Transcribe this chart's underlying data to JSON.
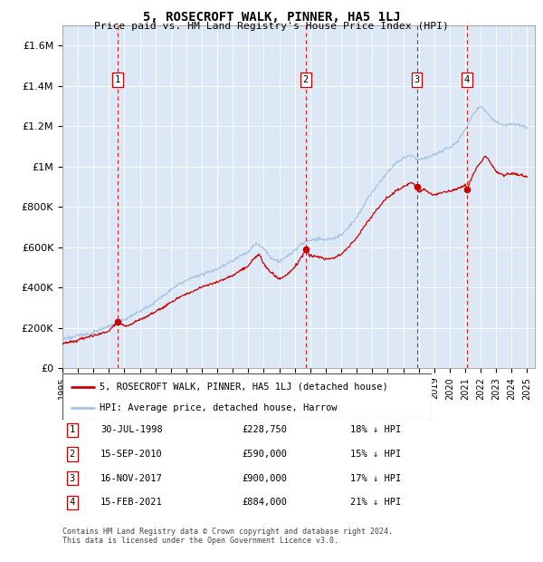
{
  "title": "5, ROSECROFT WALK, PINNER, HA5 1LJ",
  "subtitle": "Price paid vs. HM Land Registry's House Price Index (HPI)",
  "ylabel_ticks": [
    "£0",
    "£200K",
    "£400K",
    "£600K",
    "£800K",
    "£1M",
    "£1.2M",
    "£1.4M",
    "£1.6M"
  ],
  "ytick_values": [
    0,
    200000,
    400000,
    600000,
    800000,
    1000000,
    1200000,
    1400000,
    1600000
  ],
  "ylim": [
    0,
    1700000
  ],
  "hpi_color": "#a8c4e0",
  "price_color": "#cc0000",
  "vline_color": "#cc0000",
  "background_color": "#dce8f5",
  "transactions": [
    {
      "date_num": 1998.57,
      "price": 228750,
      "label": "1",
      "date_str": "30-JUL-1998",
      "pct": "18%"
    },
    {
      "date_num": 2010.71,
      "price": 590000,
      "label": "2",
      "date_str": "15-SEP-2010",
      "pct": "15%"
    },
    {
      "date_num": 2017.88,
      "price": 900000,
      "label": "3",
      "date_str": "16-NOV-2017",
      "pct": "17%"
    },
    {
      "date_num": 2021.12,
      "price": 884000,
      "label": "4",
      "date_str": "15-FEB-2021",
      "pct": "21%"
    }
  ],
  "legend_line1": "5, ROSECROFT WALK, PINNER, HA5 1LJ (detached house)",
  "legend_line2": "HPI: Average price, detached house, Harrow",
  "footer": "Contains HM Land Registry data © Crown copyright and database right 2024.\nThis data is licensed under the Open Government Licence v3.0.",
  "table_rows": [
    [
      "1",
      "30-JUL-1998",
      "£228,750",
      "18% ↓ HPI"
    ],
    [
      "2",
      "15-SEP-2010",
      "£590,000",
      "15% ↓ HPI"
    ],
    [
      "3",
      "16-NOV-2017",
      "£900,000",
      "17% ↓ HPI"
    ],
    [
      "4",
      "15-FEB-2021",
      "£884,000",
      "21% ↓ HPI"
    ]
  ],
  "hpi_keypoints": [
    [
      1995.0,
      140000
    ],
    [
      1996.0,
      155000
    ],
    [
      1997.0,
      175000
    ],
    [
      1998.0,
      200000
    ],
    [
      1999.0,
      235000
    ],
    [
      2000.0,
      275000
    ],
    [
      2001.0,
      320000
    ],
    [
      2002.0,
      380000
    ],
    [
      2003.0,
      430000
    ],
    [
      2004.0,
      460000
    ],
    [
      2005.0,
      490000
    ],
    [
      2006.0,
      530000
    ],
    [
      2007.0,
      580000
    ],
    [
      2007.5,
      620000
    ],
    [
      2008.0,
      590000
    ],
    [
      2008.5,
      545000
    ],
    [
      2009.0,
      530000
    ],
    [
      2009.5,
      555000
    ],
    [
      2010.0,
      590000
    ],
    [
      2010.5,
      625000
    ],
    [
      2011.0,
      640000
    ],
    [
      2011.5,
      650000
    ],
    [
      2012.0,
      645000
    ],
    [
      2012.5,
      655000
    ],
    [
      2013.0,
      670000
    ],
    [
      2013.5,
      710000
    ],
    [
      2014.0,
      760000
    ],
    [
      2014.5,
      820000
    ],
    [
      2015.0,
      880000
    ],
    [
      2015.5,
      930000
    ],
    [
      2016.0,
      980000
    ],
    [
      2016.5,
      1020000
    ],
    [
      2017.0,
      1050000
    ],
    [
      2017.5,
      1060000
    ],
    [
      2018.0,
      1040000
    ],
    [
      2018.5,
      1050000
    ],
    [
      2019.0,
      1060000
    ],
    [
      2019.5,
      1080000
    ],
    [
      2020.0,
      1090000
    ],
    [
      2020.5,
      1120000
    ],
    [
      2021.0,
      1180000
    ],
    [
      2021.5,
      1260000
    ],
    [
      2022.0,
      1300000
    ],
    [
      2022.5,
      1260000
    ],
    [
      2023.0,
      1220000
    ],
    [
      2023.5,
      1200000
    ],
    [
      2024.0,
      1210000
    ],
    [
      2024.5,
      1200000
    ],
    [
      2025.0,
      1190000
    ]
  ],
  "price_keypoints": [
    [
      1995.0,
      120000
    ],
    [
      1996.0,
      135000
    ],
    [
      1997.0,
      155000
    ],
    [
      1998.0,
      175000
    ],
    [
      1998.57,
      228750
    ],
    [
      1999.0,
      200000
    ],
    [
      1999.5,
      215000
    ],
    [
      2000.0,
      235000
    ],
    [
      2001.0,
      275000
    ],
    [
      2002.0,
      320000
    ],
    [
      2003.0,
      365000
    ],
    [
      2004.0,
      400000
    ],
    [
      2005.0,
      425000
    ],
    [
      2006.0,
      460000
    ],
    [
      2007.0,
      510000
    ],
    [
      2007.3,
      545000
    ],
    [
      2007.7,
      570000
    ],
    [
      2008.0,
      520000
    ],
    [
      2008.5,
      480000
    ],
    [
      2009.0,
      450000
    ],
    [
      2009.5,
      470000
    ],
    [
      2010.0,
      510000
    ],
    [
      2010.71,
      590000
    ],
    [
      2011.0,
      565000
    ],
    [
      2011.5,
      560000
    ],
    [
      2012.0,
      545000
    ],
    [
      2012.5,
      555000
    ],
    [
      2013.0,
      570000
    ],
    [
      2013.5,
      610000
    ],
    [
      2014.0,
      650000
    ],
    [
      2014.5,
      710000
    ],
    [
      2015.0,
      760000
    ],
    [
      2015.5,
      810000
    ],
    [
      2016.0,
      850000
    ],
    [
      2016.5,
      880000
    ],
    [
      2017.0,
      900000
    ],
    [
      2017.5,
      920000
    ],
    [
      2017.88,
      900000
    ],
    [
      2018.0,
      870000
    ],
    [
      2018.3,
      890000
    ],
    [
      2018.7,
      870000
    ],
    [
      2019.0,
      860000
    ],
    [
      2019.5,
      870000
    ],
    [
      2020.0,
      880000
    ],
    [
      2020.5,
      890000
    ],
    [
      2021.0,
      910000
    ],
    [
      2021.12,
      884000
    ],
    [
      2021.5,
      960000
    ],
    [
      2022.0,
      1020000
    ],
    [
      2022.3,
      1050000
    ],
    [
      2022.6,
      1020000
    ],
    [
      2023.0,
      970000
    ],
    [
      2023.5,
      950000
    ],
    [
      2024.0,
      960000
    ],
    [
      2024.5,
      950000
    ],
    [
      2025.0,
      940000
    ]
  ]
}
